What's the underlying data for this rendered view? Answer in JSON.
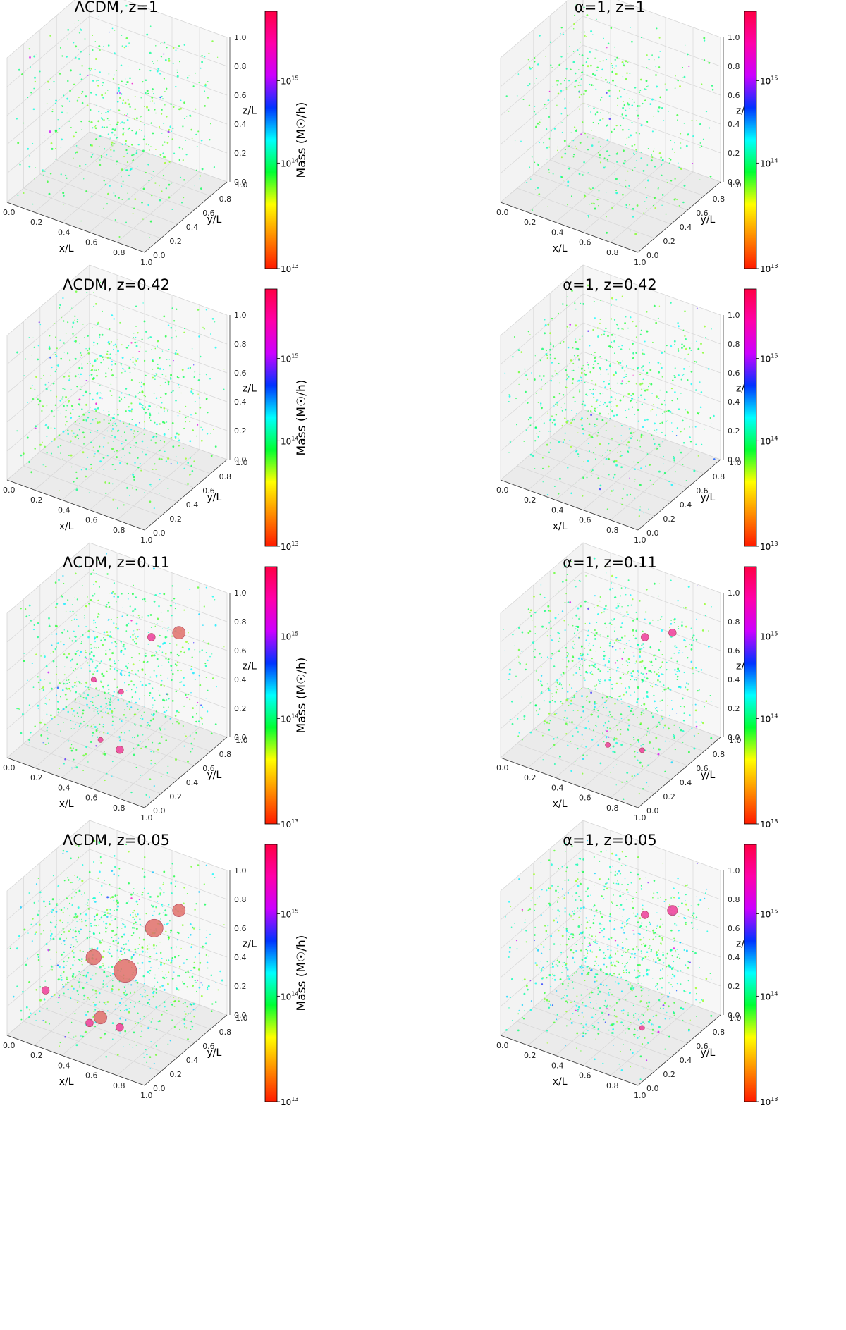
{
  "figure": {
    "axis_labels": {
      "x": "x/L",
      "y": "y/L",
      "z": "z/L"
    },
    "tick_labels": [
      "0.0",
      "0.2",
      "0.4",
      "0.6",
      "0.8",
      "1.0"
    ],
    "colorbar": {
      "label": "Mass (M☉/h)",
      "ticks": [
        {
          "base": "10",
          "exp": "13"
        },
        {
          "base": "10",
          "exp": "14"
        },
        {
          "base": "10",
          "exp": "15"
        }
      ],
      "colors": [
        "#ff1a00",
        "#ff8c00",
        "#ffff00",
        "#00ff33",
        "#00ffff",
        "#0033ff",
        "#cc00ff",
        "#ff00aa",
        "#ff0044"
      ]
    }
  },
  "chart_data": [
    {
      "type": "scatter",
      "model": "LCDM",
      "title": "ΛCDM, z=1",
      "redshift": 1,
      "density": 0.55,
      "large_halos": [],
      "show_colorbar_label": true
    },
    {
      "type": "scatter",
      "model": "alpha1",
      "title": "α=1, z=1",
      "redshift": 1,
      "density": 0.55,
      "large_halos": [],
      "show_colorbar_label": false
    },
    {
      "type": "scatter",
      "model": "LCDM",
      "title": "ΛCDM, z=0.42",
      "redshift": 0.42,
      "density": 0.75,
      "large_halos": [],
      "show_colorbar_label": true
    },
    {
      "type": "scatter",
      "model": "alpha1",
      "title": "α=1, z=0.42",
      "redshift": 0.42,
      "density": 0.75,
      "large_halos": [],
      "show_colorbar_label": false
    },
    {
      "type": "scatter",
      "model": "LCDM",
      "title": "ΛCDM, z=0.11",
      "redshift": 0.11,
      "density": 0.9,
      "large_halos": [
        {
          "x": 0.95,
          "y": 0.5,
          "z": 0.95,
          "mass_log": 15.4
        },
        {
          "x": 0.75,
          "y": 0.5,
          "z": 0.85,
          "mass_log": 15.2
        },
        {
          "x": 0.45,
          "y": 0.3,
          "z": 0.55,
          "mass_log": 15.1
        },
        {
          "x": 0.62,
          "y": 0.35,
          "z": 0.5,
          "mass_log": 15.1
        },
        {
          "x": 0.5,
          "y": 0.3,
          "z": 0.15,
          "mass_log": 15.1
        },
        {
          "x": 0.7,
          "y": 0.2,
          "z": 0.2,
          "mass_log": 15.2
        }
      ],
      "show_colorbar_label": true
    },
    {
      "type": "scatter",
      "model": "alpha1",
      "title": "α=1, z=0.11",
      "redshift": 0.11,
      "density": 0.9,
      "large_halos": [
        {
          "x": 0.95,
          "y": 0.5,
          "z": 0.95,
          "mass_log": 15.2
        },
        {
          "x": 0.75,
          "y": 0.5,
          "z": 0.85,
          "mass_log": 15.2
        },
        {
          "x": 0.85,
          "y": 0.3,
          "z": 0.2,
          "mass_log": 15.1
        },
        {
          "x": 0.6,
          "y": 0.3,
          "z": 0.15,
          "mass_log": 15.1
        }
      ],
      "show_colorbar_label": false
    },
    {
      "type": "scatter",
      "model": "LCDM",
      "title": "ΛCDM, z=0.05",
      "redshift": 0.05,
      "density": 1.0,
      "large_halos": [
        {
          "x": 0.95,
          "y": 0.5,
          "z": 0.95,
          "mass_log": 15.4
        },
        {
          "x": 0.8,
          "y": 0.45,
          "z": 0.8,
          "mass_log": 15.6
        },
        {
          "x": 0.65,
          "y": 0.35,
          "z": 0.5,
          "mass_log": 15.8
        },
        {
          "x": 0.45,
          "y": 0.3,
          "z": 0.55,
          "mass_log": 15.5
        },
        {
          "x": 0.5,
          "y": 0.3,
          "z": 0.15,
          "mass_log": 15.4
        },
        {
          "x": 0.45,
          "y": 0.25,
          "z": 0.12,
          "mass_log": 15.2
        },
        {
          "x": 0.7,
          "y": 0.2,
          "z": 0.2,
          "mass_log": 15.2
        },
        {
          "x": 0.1,
          "y": 0.3,
          "z": 0.2,
          "mass_log": 15.2
        }
      ],
      "show_colorbar_label": true
    },
    {
      "type": "scatter",
      "model": "alpha1",
      "title": "α=1, z=0.05",
      "redshift": 0.05,
      "density": 1.0,
      "large_halos": [
        {
          "x": 0.95,
          "y": 0.5,
          "z": 0.95,
          "mass_log": 15.3
        },
        {
          "x": 0.75,
          "y": 0.5,
          "z": 0.85,
          "mass_log": 15.2
        },
        {
          "x": 0.85,
          "y": 0.3,
          "z": 0.2,
          "mass_log": 15.1
        }
      ],
      "show_colorbar_label": false
    }
  ]
}
